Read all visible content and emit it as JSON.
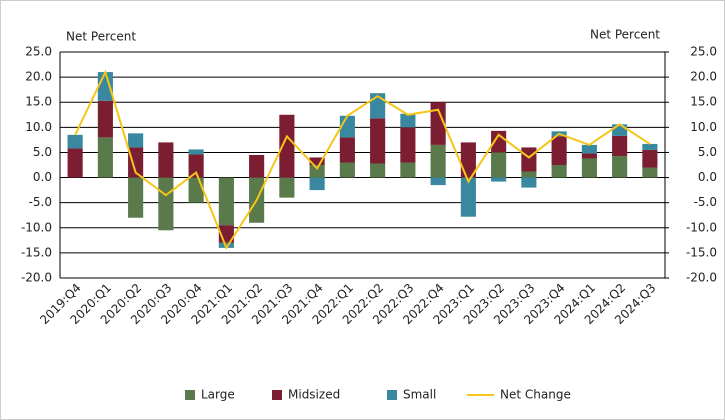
{
  "chart_data": {
    "type": "bar",
    "stacked": true,
    "y_label": "Net Percent",
    "y2_label": "Net Percent",
    "categories": [
      "2019:Q4",
      "2020:Q1",
      "2020:Q2",
      "2020:Q3",
      "2020:Q4",
      "2021:Q1",
      "2021:Q2",
      "2021:Q3",
      "2021:Q4",
      "2022:Q1",
      "2022:Q2",
      "2022:Q3",
      "2022:Q4",
      "2023:Q1",
      "2023:Q2",
      "2023:Q3",
      "2023:Q4",
      "2024:Q1",
      "2024:Q2",
      "2024:Q3"
    ],
    "series": [
      {
        "name": "Large",
        "type": "bar",
        "color": "#5b7a4b",
        "values": [
          0,
          8,
          -8,
          -10.5,
          -5,
          -9.5,
          -9,
          -4,
          2.5,
          3,
          2.8,
          3,
          6.5,
          0,
          5,
          1.2,
          2.5,
          3.8,
          4.3,
          2
        ]
      },
      {
        "name": "Midsized",
        "type": "bar",
        "color": "#7b1e32",
        "values": [
          5.8,
          7.3,
          6,
          7,
          4.6,
          -3.5,
          4.5,
          12.5,
          1.5,
          5,
          9,
          7,
          8.5,
          7,
          4.3,
          4.8,
          5.7,
          1,
          4,
          3.5
        ]
      },
      {
        "name": "Small",
        "type": "bar",
        "color": "#3a88a0",
        "values": [
          2.7,
          5.7,
          2.8,
          0,
          1,
          -1,
          0,
          0,
          -2.5,
          4.3,
          5,
          2.7,
          -1.5,
          -7.8,
          -0.8,
          -2,
          1,
          1.7,
          2.3,
          1.2
        ]
      },
      {
        "name": "Net Change",
        "type": "line",
        "color": "#f5c518",
        "values": [
          8.5,
          21,
          1,
          -3.5,
          1,
          -14,
          -4.5,
          8.2,
          1.8,
          12.3,
          16.2,
          12.5,
          13.5,
          -0.8,
          8.5,
          4,
          8.7,
          6.5,
          10.6,
          6.7
        ]
      }
    ],
    "ylim": [
      -20,
      25
    ],
    "yticks": [
      {
        "value": -20,
        "label": "-20.0"
      },
      {
        "value": -15,
        "label": "-15.0"
      },
      {
        "value": -10,
        "label": "-10.0"
      },
      {
        "value": -5,
        "label": "-5.0"
      },
      {
        "value": 0,
        "label": "0.0"
      },
      {
        "value": 5,
        "label": "5.0"
      },
      {
        "value": 10,
        "label": "10.0"
      },
      {
        "value": 15,
        "label": "15.0"
      },
      {
        "value": 20,
        "label": "20.0"
      },
      {
        "value": 25,
        "label": "25.0"
      }
    ],
    "y2lim": [
      -20,
      25
    ],
    "y2ticks": [
      {
        "value": -20,
        "label": "-20.0"
      },
      {
        "value": -15,
        "label": "-15.0"
      },
      {
        "value": -10,
        "label": "-10.0"
      },
      {
        "value": -5,
        "label": "-5.0"
      },
      {
        "value": 0,
        "label": "0.0"
      },
      {
        "value": 5,
        "label": "5.0"
      },
      {
        "value": 10,
        "label": "10.0"
      },
      {
        "value": 15,
        "label": "15.0"
      },
      {
        "value": 20,
        "label": "20.0"
      },
      {
        "value": 25,
        "label": "25.0"
      }
    ],
    "grid": true,
    "legend": "bottom"
  }
}
